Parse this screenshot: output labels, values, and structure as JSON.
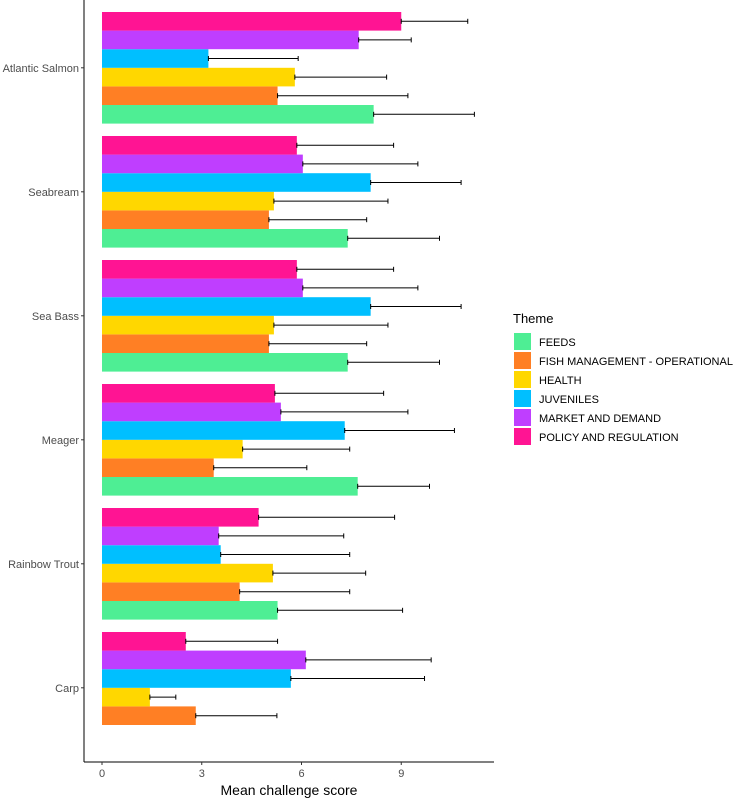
{
  "chart_data": {
    "type": "bar",
    "orientation": "horizontal",
    "xlabel": "Mean challenge score",
    "ylabel": "",
    "xlim": [
      -0.55,
      11.8
    ],
    "xticks": [
      0,
      3,
      6,
      9
    ],
    "grid": false,
    "legend": {
      "title": "Theme",
      "placement": "right"
    },
    "categories": [
      "Atlantic Salmon",
      "Seabream",
      "Sea Bass",
      "Meager",
      "Rainbow Trout",
      "Carp"
    ],
    "series": [
      {
        "name": "FEEDS",
        "color": "#4EEE94",
        "values": [
          8.17,
          7.39,
          7.39,
          7.69,
          5.28,
          null
        ],
        "upper": [
          11.2,
          10.15,
          10.15,
          9.85,
          9.04,
          null
        ]
      },
      {
        "name": "FISH MANAGEMENT - OPERATIONAL",
        "color": "#FF7F24",
        "values": [
          5.28,
          5.02,
          5.02,
          3.36,
          4.14,
          2.82
        ],
        "upper": [
          9.2,
          7.96,
          7.96,
          6.16,
          7.45,
          5.26
        ]
      },
      {
        "name": "HEALTH",
        "color": "#FFD700",
        "values": [
          5.8,
          5.17,
          5.17,
          4.23,
          5.14,
          1.44
        ],
        "upper": [
          8.56,
          8.6,
          8.6,
          7.45,
          7.93,
          2.22
        ]
      },
      {
        "name": "JUVENILES",
        "color": "#00BFFF",
        "values": [
          3.2,
          8.08,
          8.08,
          7.3,
          3.57,
          5.68
        ],
        "upper": [
          5.9,
          10.8,
          10.8,
          10.6,
          7.45,
          9.7
        ]
      },
      {
        "name": "MARKET AND DEMAND",
        "color": "#BF3EFF",
        "values": [
          7.72,
          6.04,
          6.04,
          5.38,
          3.51,
          6.13
        ],
        "upper": [
          9.3,
          9.5,
          9.5,
          9.2,
          7.27,
          9.9
        ]
      },
      {
        "name": "POLICY AND REGULATION",
        "color": "#FF1493",
        "values": [
          9.0,
          5.86,
          5.86,
          5.2,
          4.71,
          2.52
        ],
        "upper": [
          11.0,
          8.77,
          8.77,
          8.47,
          8.8,
          5.28
        ]
      }
    ]
  }
}
